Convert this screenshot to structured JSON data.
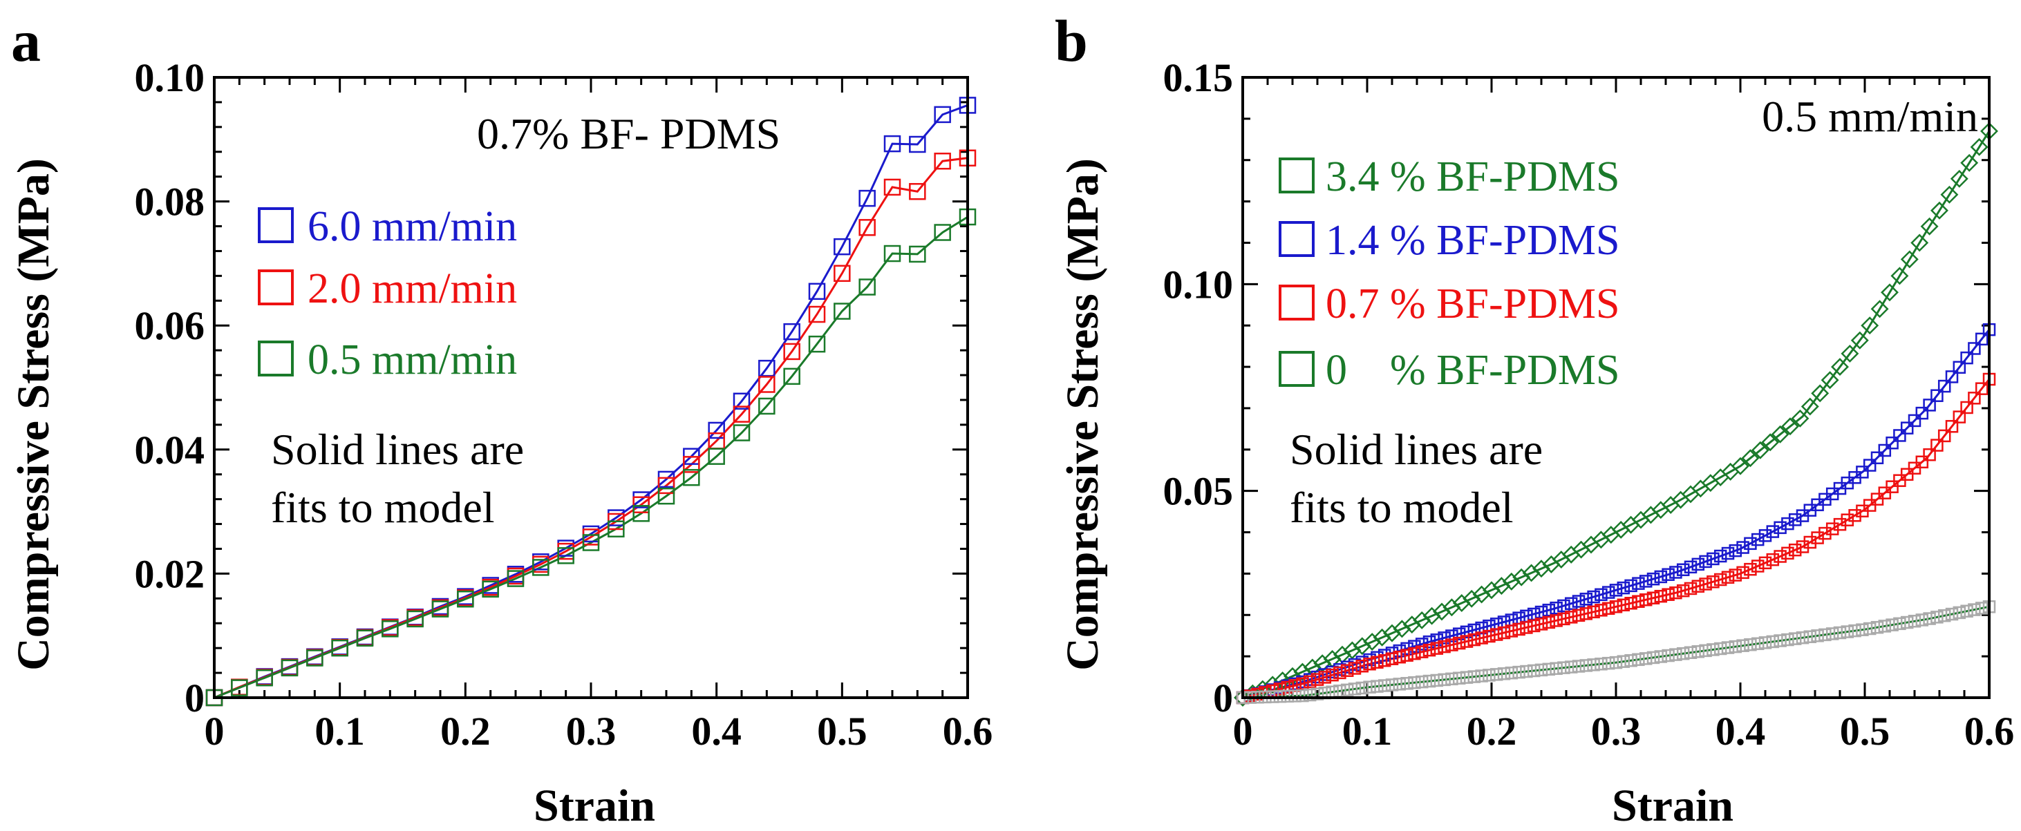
{
  "chart_data": [
    {
      "panel": "a",
      "type": "scatter",
      "title": "0.7% BF- PDMS",
      "xlabel": "Strain",
      "ylabel": "Compressive Stress (MPa)",
      "xlim": [
        0,
        0.6
      ],
      "ylim": [
        0,
        0.1
      ],
      "xticks": [
        "0",
        "0.1",
        "0.2",
        "0.3",
        "0.4",
        "0.5",
        "0.6"
      ],
      "xtick_values": [
        0,
        0.1,
        0.2,
        0.3,
        0.4,
        0.5,
        0.6
      ],
      "yticks": [
        "0",
        "0.02",
        "0.04",
        "0.06",
        "0.08",
        "0.10"
      ],
      "ytick_values": [
        0,
        0.02,
        0.04,
        0.06,
        0.08,
        0.1
      ],
      "annotation": [
        "Solid lines are",
        "fits to model"
      ],
      "legend_position": "upper-left",
      "series": [
        {
          "name": "6.0 mm/min",
          "color": "#1a1acc",
          "marker": "square",
          "x": [
            0,
            0.02,
            0.04,
            0.06,
            0.08,
            0.1,
            0.12,
            0.14,
            0.16,
            0.18,
            0.2,
            0.22,
            0.24,
            0.26,
            0.28,
            0.3,
            0.32,
            0.34,
            0.36,
            0.38,
            0.4,
            0.42,
            0.44,
            0.46,
            0.48,
            0.5,
            0.52,
            0.54,
            0.56,
            0.58,
            0.6
          ],
          "y": [
            0,
            0.0017,
            0.0034,
            0.005,
            0.0066,
            0.0082,
            0.0098,
            0.0114,
            0.013,
            0.0147,
            0.0163,
            0.0181,
            0.0199,
            0.0219,
            0.0241,
            0.0264,
            0.029,
            0.0319,
            0.0352,
            0.0389,
            0.0431,
            0.0478,
            0.0531,
            0.059,
            0.0655,
            0.0727,
            0.0805,
            0.0893,
            0.0892,
            0.094,
            0.0955
          ]
        },
        {
          "name": "2.0 mm/min",
          "color": "#ee1111",
          "marker": "square",
          "x": [
            0,
            0.02,
            0.04,
            0.06,
            0.08,
            0.1,
            0.12,
            0.14,
            0.16,
            0.18,
            0.2,
            0.22,
            0.24,
            0.26,
            0.28,
            0.3,
            0.32,
            0.34,
            0.36,
            0.38,
            0.4,
            0.42,
            0.44,
            0.46,
            0.48,
            0.5,
            0.52,
            0.54,
            0.56,
            0.58,
            0.6
          ],
          "y": [
            0,
            0.0017,
            0.0033,
            0.0049,
            0.0065,
            0.0081,
            0.0097,
            0.0113,
            0.0129,
            0.0145,
            0.0161,
            0.0178,
            0.0196,
            0.0215,
            0.0236,
            0.0259,
            0.0284,
            0.0311,
            0.0342,
            0.0376,
            0.0414,
            0.0457,
            0.0505,
            0.0558,
            0.0618,
            0.0684,
            0.0758,
            0.0823,
            0.0816,
            0.0865,
            0.087
          ]
        },
        {
          "name": "0.5 mm/min",
          "color": "#1a7a2a",
          "marker": "square",
          "x": [
            0,
            0.02,
            0.04,
            0.06,
            0.08,
            0.1,
            0.12,
            0.14,
            0.16,
            0.18,
            0.2,
            0.22,
            0.24,
            0.26,
            0.28,
            0.3,
            0.32,
            0.34,
            0.36,
            0.38,
            0.4,
            0.42,
            0.44,
            0.46,
            0.48,
            0.5,
            0.52,
            0.54,
            0.56,
            0.58,
            0.6
          ],
          "y": [
            0,
            0.0016,
            0.0032,
            0.0048,
            0.0064,
            0.008,
            0.0096,
            0.0111,
            0.0127,
            0.0143,
            0.0159,
            0.0175,
            0.0192,
            0.021,
            0.0229,
            0.025,
            0.0272,
            0.0297,
            0.0325,
            0.0355,
            0.0389,
            0.0427,
            0.047,
            0.0518,
            0.057,
            0.0623,
            0.0662,
            0.0716,
            0.0715,
            0.075,
            0.0775
          ]
        }
      ]
    },
    {
      "panel": "b",
      "type": "scatter",
      "title": "0.5 mm/min",
      "xlabel": "Strain",
      "ylabel": "Compressive Stress (MPa)",
      "xlim": [
        0,
        0.6
      ],
      "ylim": [
        0,
        0.15
      ],
      "xticks": [
        "0",
        "0.1",
        "0.2",
        "0.3",
        "0.4",
        "0.5",
        "0.6"
      ],
      "xtick_values": [
        0,
        0.1,
        0.2,
        0.3,
        0.4,
        0.5,
        0.6
      ],
      "yticks": [
        "0",
        "0.05",
        "0.10",
        "0.15"
      ],
      "ytick_values": [
        0,
        0.05,
        0.1,
        0.15
      ],
      "annotation": [
        "Solid lines are",
        "fits to model"
      ],
      "legend_position": "upper-left",
      "series": [
        {
          "name": "3.4 % BF-PDMS",
          "color": "#1a7a2a",
          "marker": "diamond",
          "x": [
            0,
            0.05,
            0.1,
            0.15,
            0.2,
            0.25,
            0.3,
            0.35,
            0.4,
            0.45,
            0.5,
            0.55,
            0.6
          ],
          "y": [
            0,
            0.0065,
            0.013,
            0.0195,
            0.026,
            0.0325,
            0.04,
            0.0475,
            0.056,
            0.068,
            0.088,
            0.113,
            0.137
          ]
        },
        {
          "name": "1.4 % BF-PDMS",
          "color": "#1a1acc",
          "marker": "square",
          "x": [
            0,
            0.05,
            0.1,
            0.15,
            0.2,
            0.25,
            0.3,
            0.35,
            0.4,
            0.45,
            0.5,
            0.55,
            0.6
          ],
          "y": [
            0,
            0.004,
            0.009,
            0.0135,
            0.0175,
            0.0215,
            0.026,
            0.0305,
            0.036,
            0.044,
            0.055,
            0.07,
            0.089
          ]
        },
        {
          "name": "0.7 % BF-PDMS",
          "color": "#ee1111",
          "marker": "square",
          "x": [
            0,
            0.05,
            0.1,
            0.15,
            0.2,
            0.25,
            0.3,
            0.35,
            0.4,
            0.45,
            0.5,
            0.55,
            0.6
          ],
          "y": [
            0,
            0.0035,
            0.008,
            0.0115,
            0.015,
            0.0185,
            0.022,
            0.0255,
            0.03,
            0.0365,
            0.0455,
            0.058,
            0.077
          ]
        },
        {
          "name": "0    % BF-PDMS",
          "color": "#1a7a2a",
          "marker_color": "#aaaaaa",
          "marker": "square",
          "x": [
            0,
            0.05,
            0.1,
            0.15,
            0.2,
            0.25,
            0.3,
            0.35,
            0.4,
            0.45,
            0.5,
            0.55,
            0.6
          ],
          "y": [
            0,
            0.0005,
            0.0025,
            0.004,
            0.0055,
            0.007,
            0.0085,
            0.0105,
            0.0125,
            0.0145,
            0.0165,
            0.019,
            0.022
          ]
        }
      ]
    }
  ]
}
